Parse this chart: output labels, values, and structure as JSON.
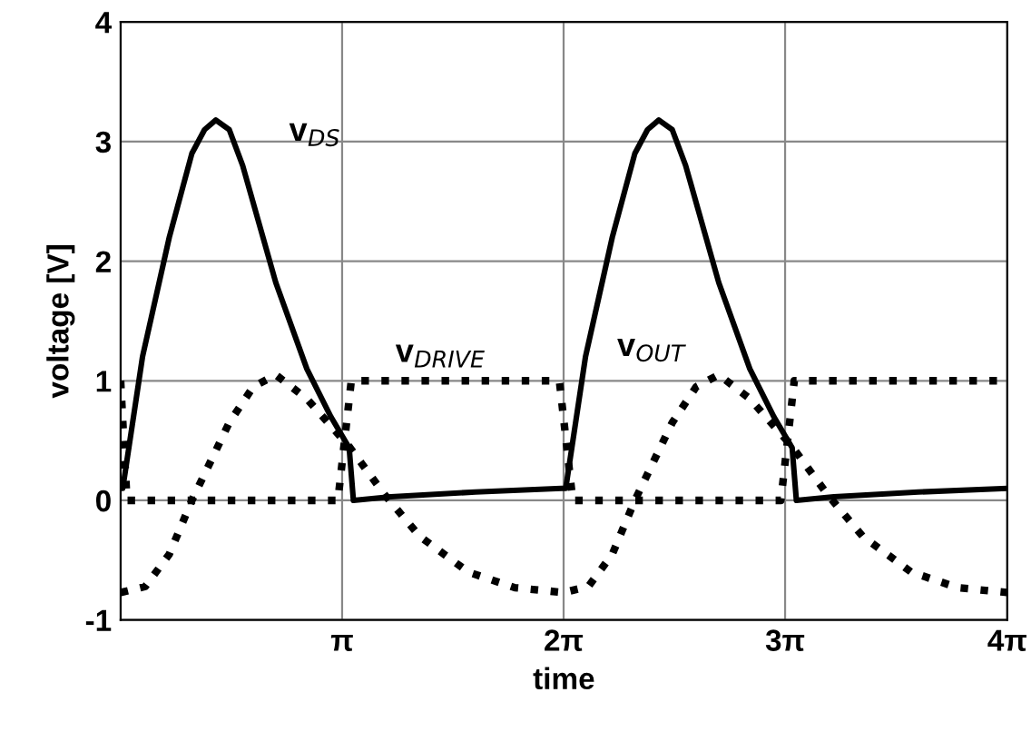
{
  "chart_data": {
    "type": "line",
    "xlabel": "time",
    "ylabel": "voltage [V]",
    "xlim": [
      0,
      12.57
    ],
    "xticks": [
      {
        "value": 3.14,
        "label": "π"
      },
      {
        "value": 6.28,
        "label": "2π"
      },
      {
        "value": 9.42,
        "label": "3π"
      },
      {
        "value": 12.57,
        "label": "4π"
      }
    ],
    "ylim": [
      -1,
      4
    ],
    "yticks": [
      -1,
      0,
      1,
      2,
      3,
      4
    ],
    "grid": true,
    "series": [
      {
        "name": "v$_{DS}$",
        "color": "#000000",
        "line_style": "solid",
        "x": [
          0,
          0.03,
          0.31,
          0.69,
          1.01,
          1.19,
          1.35,
          1.54,
          1.73,
          2.2,
          2.64,
          2.98,
          3.24,
          3.3,
          3.83,
          5.03,
          6.25,
          6.31,
          6.59,
          6.97,
          7.29,
          7.47,
          7.63,
          7.82,
          8.01,
          8.48,
          8.92,
          9.26,
          9.52,
          9.58,
          10.11,
          11.31,
          12.57
        ],
        "values": [
          0.1,
          0.1,
          1.2,
          2.2,
          2.9,
          3.1,
          3.18,
          3.1,
          2.8,
          1.82,
          1.1,
          0.7,
          0.44,
          0,
          0.03,
          0.07,
          0.1,
          0.1,
          1.2,
          2.2,
          2.9,
          3.1,
          3.18,
          3.1,
          2.8,
          1.82,
          1.1,
          0.7,
          0.44,
          0,
          0.03,
          0.07,
          0.1
        ]
      },
      {
        "name": "v$_{DRIVE}$",
        "color": "#000000",
        "line_style": "dotted",
        "x": [
          0,
          0.09,
          3.08,
          3.27,
          6.22,
          6.41,
          9.36,
          9.55,
          12.57
        ],
        "values": [
          1,
          0,
          0,
          1,
          1,
          0,
          0,
          1,
          1
        ]
      },
      {
        "name": "v$_{OUT}$",
        "color": "#000000",
        "line_style": "dotted",
        "x": [
          0,
          0.35,
          0.69,
          1.01,
          1.54,
          1.88,
          2.2,
          2.64,
          3.24,
          3.74,
          4.24,
          4.93,
          5.59,
          6.28,
          6.63,
          6.97,
          7.29,
          7.82,
          8.16,
          8.48,
          8.92,
          9.52,
          10.02,
          10.52,
          11.21,
          11.87,
          12.57
        ],
        "values": [
          -0.77,
          -0.72,
          -0.45,
          0,
          0.65,
          0.95,
          1.05,
          0.85,
          0.45,
          0.05,
          -0.3,
          -0.6,
          -0.73,
          -0.77,
          -0.72,
          -0.45,
          0,
          0.65,
          0.95,
          1.05,
          0.85,
          0.45,
          0.05,
          -0.3,
          -0.6,
          -0.73,
          -0.77
        ]
      }
    ]
  }
}
